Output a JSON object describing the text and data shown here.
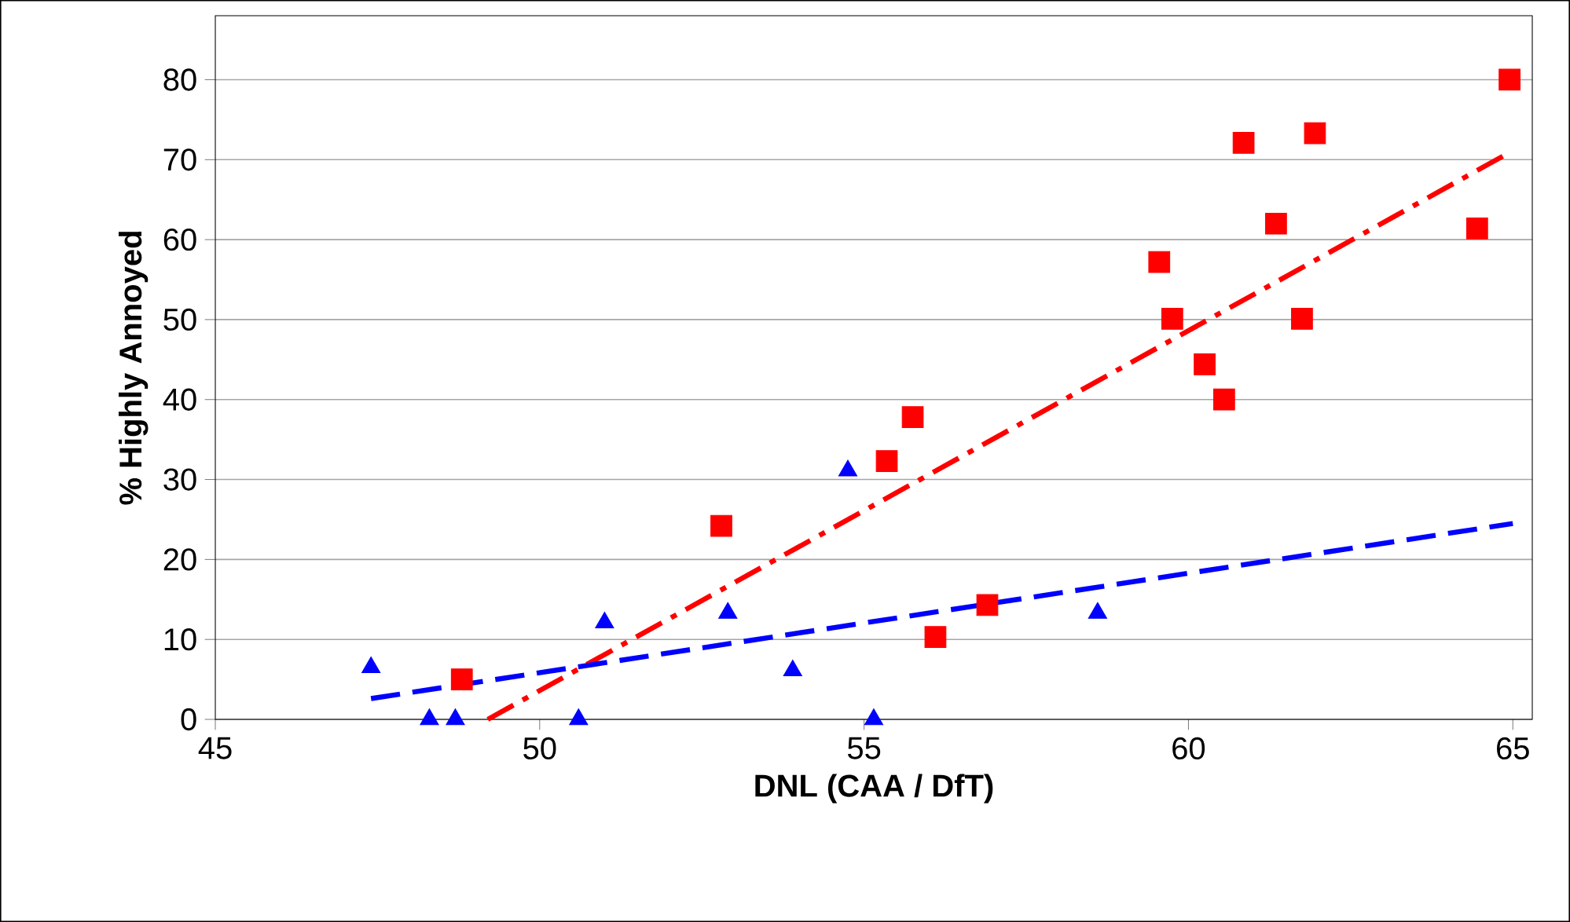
{
  "chart_data": {
    "type": "scatter",
    "xlabel": "DNL (CAA / DfT)",
    "ylabel": "% Highly Annoyed",
    "xlim": [
      45,
      65.3
    ],
    "xticks": [
      45,
      50,
      55,
      60,
      65
    ],
    "ylim": [
      0,
      88
    ],
    "yticks": [
      0,
      10,
      20,
      30,
      40,
      50,
      60,
      70,
      80
    ],
    "grid": "y",
    "series": [
      {
        "color": "#ff0000",
        "marker": "square",
        "x": [
          48.8,
          52.8,
          55.35,
          55.75,
          56.1,
          56.9,
          59.55,
          59.75,
          60.25,
          60.55,
          60.85,
          61.35,
          61.75,
          61.95,
          64.45,
          64.95
        ],
        "values": [
          5.0,
          24.2,
          32.3,
          37.8,
          10.3,
          14.3,
          57.2,
          50.1,
          44.4,
          40.0,
          72.1,
          62.0,
          50.1,
          73.3,
          61.4,
          80.0
        ]
      },
      {
        "color": "#0000ff",
        "marker": "triangle",
        "x": [
          47.4,
          48.3,
          48.7,
          50.6,
          51.0,
          52.9,
          53.9,
          54.75,
          55.15,
          58.6
        ],
        "values": [
          6.5,
          0,
          0,
          0,
          12.1,
          13.3,
          6.1,
          31.1,
          0,
          13.3
        ]
      },
      {
        "type": "line",
        "color": "#ff0000",
        "line_style": "dashdot",
        "x": [
          49.2,
          64.95
        ],
        "values": [
          0,
          70.9
        ]
      },
      {
        "type": "line",
        "color": "#0000ff",
        "line_style": "dashed",
        "x": [
          47.4,
          65.0
        ],
        "values": [
          2.6,
          24.5
        ]
      }
    ]
  }
}
